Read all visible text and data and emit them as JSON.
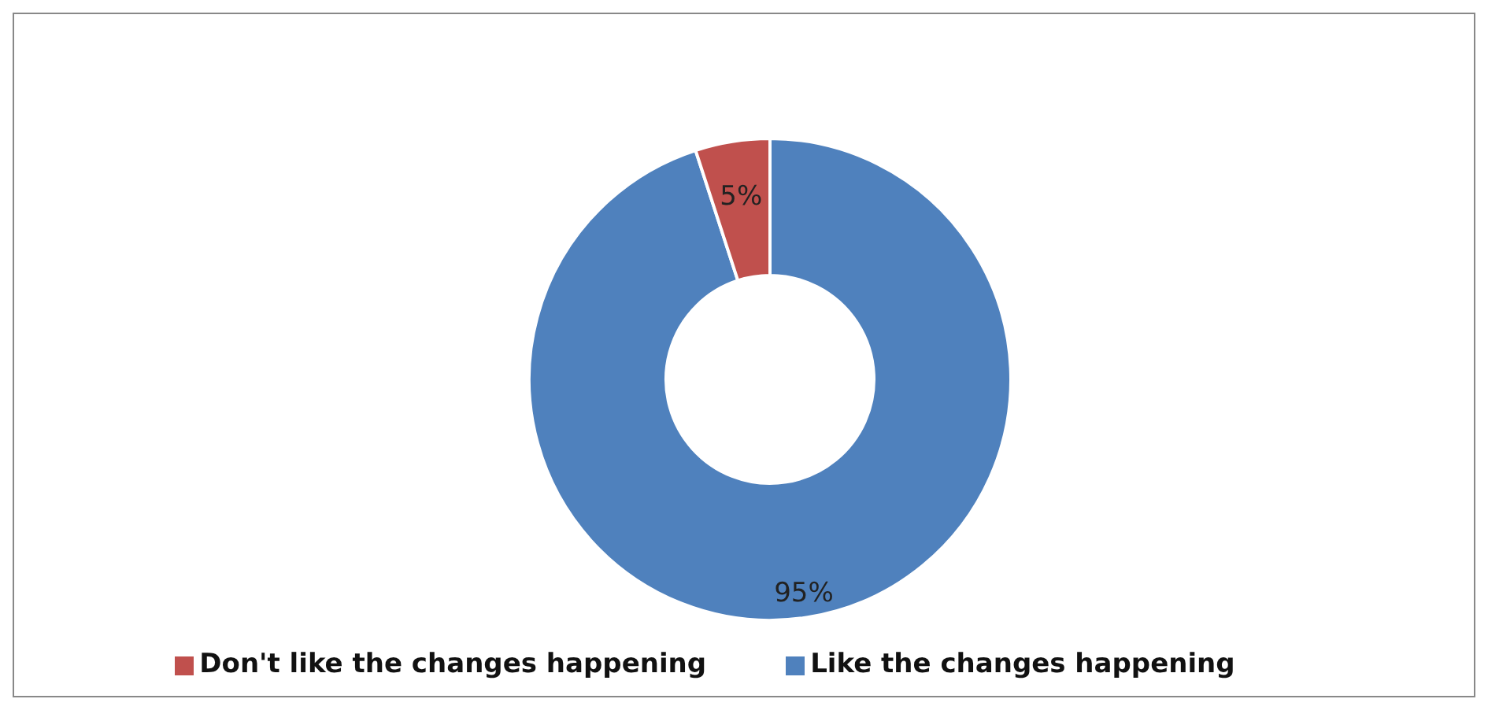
{
  "chart_data": {
    "type": "donut",
    "categories": [
      "Like the changes happening",
      "Don't like the changes happening"
    ],
    "values": [
      95,
      5
    ],
    "colors": [
      "#4f81bd",
      "#c0504d"
    ],
    "value_labels": [
      "95%",
      "5%"
    ],
    "legend": "bottom"
  }
}
